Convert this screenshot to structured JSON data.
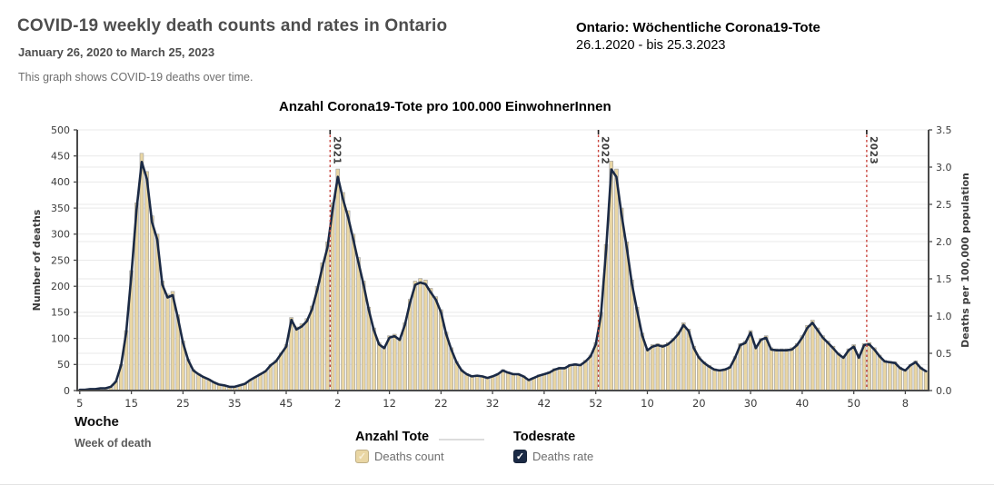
{
  "header": {
    "title": "COVID-19 weekly death counts and rates in Ontario",
    "date_range": "January 26, 2020 to March 25, 2023",
    "description": "This graph shows COVID-19 deaths over time.",
    "note_title": "Ontario: Wöchentliche Corona19-Tote",
    "note_dates": "26.1.2020 - bis 25.3.2023"
  },
  "chart_heading": "Anzahl Corona19-Tote pro 100.000 EinwohnerInnen",
  "xaxis": {
    "label_de": "Woche",
    "label_en": "Week of death"
  },
  "legend": {
    "count": {
      "heading": "Anzahl Tote",
      "label": "Deaths count",
      "checked": true,
      "box_color": "#e9d6a4",
      "check_color": "#f7efd9"
    },
    "rate": {
      "heading": "Todesrate",
      "label": "Deaths rate",
      "checked": true,
      "box_color": "#1b2a45",
      "check_color": "#ffffff"
    }
  },
  "chart_data": {
    "type": "bar+line",
    "title": "Anzahl Corona19-Tote pro 100.000 EinwohnerInnen",
    "x_domain": {
      "start": "2020 week 5 (Jan 26, 2020)",
      "end": "2023 week 12 (Mar 25, 2023)",
      "weeks_total": 165
    },
    "x_tick_labels": [
      "5",
      "15",
      "25",
      "35",
      "45",
      "2",
      "12",
      "22",
      "32",
      "42",
      "52",
      "10",
      "20",
      "30",
      "40",
      "50",
      "8"
    ],
    "x_tick_interval_weeks": 10,
    "year_markers": [
      {
        "label": "2021",
        "boundary_index": 49
      },
      {
        "label": "2022",
        "boundary_index": 101
      },
      {
        "label": "2023",
        "boundary_index": 153
      }
    ],
    "axes": {
      "left": {
        "title": "Number of deaths",
        "min": 0,
        "max": 500,
        "tick_step": 50
      },
      "right": {
        "title": "Deaths per 100,000 population",
        "min": 0,
        "max": 3.5,
        "tick_step": 0.5
      }
    },
    "grid": true,
    "legend_position": "bottom",
    "colors": {
      "year_line": "#c9433c",
      "year_line_cap": "#222222",
      "grid": "#e9e9e9",
      "axis": "#4a4a4a",
      "tick_text": "#3c3c3c"
    },
    "series": [
      {
        "name": "Deaths count",
        "type": "bar",
        "axis": "left",
        "color": "#e9d6a4",
        "border_color": "#9b9b9b",
        "values": [
          2,
          2,
          3,
          3,
          4,
          5,
          8,
          18,
          50,
          115,
          230,
          360,
          455,
          420,
          335,
          300,
          210,
          185,
          190,
          145,
          95,
          60,
          40,
          32,
          26,
          22,
          16,
          12,
          10,
          8,
          8,
          10,
          14,
          20,
          26,
          32,
          38,
          50,
          58,
          72,
          88,
          140,
          122,
          128,
          138,
          162,
          200,
          245,
          285,
          360,
          425,
          380,
          345,
          300,
          255,
          210,
          160,
          120,
          92,
          85,
          105,
          108,
          100,
          130,
          175,
          210,
          215,
          212,
          196,
          180,
          155,
          112,
          82,
          56,
          40,
          32,
          28,
          30,
          28,
          25,
          28,
          32,
          40,
          36,
          33,
          32,
          28,
          20,
          25,
          30,
          32,
          36,
          42,
          45,
          45,
          50,
          52,
          50,
          58,
          68,
          92,
          150,
          280,
          440,
          425,
          350,
          285,
          212,
          160,
          110,
          80,
          88,
          90,
          88,
          92,
          100,
          112,
          130,
          118,
          85,
          65,
          55,
          48,
          42,
          40,
          42,
          46,
          65,
          90,
          95,
          115,
          85,
          100,
          105,
          82,
          80,
          80,
          80,
          82,
          90,
          105,
          125,
          135,
          120,
          105,
          95,
          85,
          72,
          65,
          80,
          88,
          65,
          90,
          92,
          82,
          68,
          58,
          56,
          55,
          45,
          40,
          50,
          57,
          45,
          38
        ]
      },
      {
        "name": "Deaths rate",
        "type": "line",
        "axis": "right",
        "color": "#1b2a45",
        "values": [
          0.01,
          0.01,
          0.02,
          0.02,
          0.03,
          0.03,
          0.05,
          0.12,
          0.34,
          0.78,
          1.55,
          2.43,
          3.07,
          2.84,
          2.26,
          2.03,
          1.42,
          1.25,
          1.28,
          0.98,
          0.64,
          0.41,
          0.27,
          0.22,
          0.18,
          0.15,
          0.11,
          0.08,
          0.07,
          0.05,
          0.05,
          0.07,
          0.09,
          0.14,
          0.18,
          0.22,
          0.26,
          0.34,
          0.39,
          0.49,
          0.59,
          0.95,
          0.82,
          0.86,
          0.93,
          1.09,
          1.35,
          1.65,
          1.92,
          2.43,
          2.87,
          2.57,
          2.33,
          2.03,
          1.72,
          1.42,
          1.08,
          0.81,
          0.62,
          0.57,
          0.71,
          0.73,
          0.68,
          0.88,
          1.18,
          1.42,
          1.45,
          1.43,
          1.32,
          1.22,
          1.05,
          0.76,
          0.55,
          0.38,
          0.27,
          0.22,
          0.19,
          0.2,
          0.19,
          0.17,
          0.19,
          0.22,
          0.27,
          0.24,
          0.22,
          0.22,
          0.19,
          0.14,
          0.17,
          0.2,
          0.22,
          0.24,
          0.28,
          0.3,
          0.3,
          0.34,
          0.35,
          0.34,
          0.39,
          0.46,
          0.62,
          1.01,
          1.89,
          2.97,
          2.87,
          2.36,
          1.92,
          1.43,
          1.08,
          0.74,
          0.54,
          0.59,
          0.61,
          0.59,
          0.62,
          0.68,
          0.76,
          0.88,
          0.8,
          0.57,
          0.44,
          0.37,
          0.32,
          0.28,
          0.27,
          0.28,
          0.31,
          0.44,
          0.61,
          0.64,
          0.78,
          0.57,
          0.68,
          0.71,
          0.55,
          0.54,
          0.54,
          0.54,
          0.55,
          0.61,
          0.71,
          0.84,
          0.91,
          0.81,
          0.71,
          0.64,
          0.57,
          0.49,
          0.44,
          0.54,
          0.59,
          0.44,
          0.61,
          0.62,
          0.55,
          0.46,
          0.39,
          0.38,
          0.37,
          0.3,
          0.27,
          0.34,
          0.38,
          0.3,
          0.26
        ]
      }
    ]
  }
}
